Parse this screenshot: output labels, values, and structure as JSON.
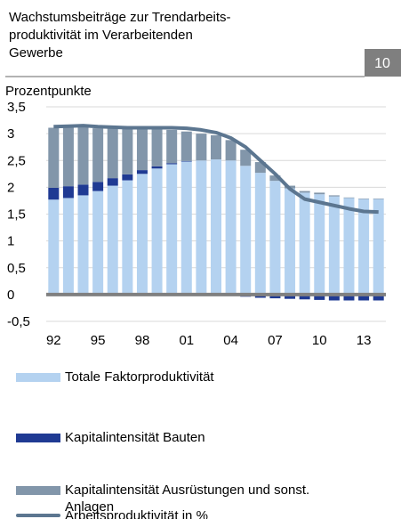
{
  "chart_data": {
    "type": "bar",
    "title_lines": [
      "Wachstumsbeiträge zur Trendarbeits-",
      "produktivität im Verarbeitenden",
      "Gewerbe"
    ],
    "badge": "10",
    "y_label": "Prozentpunkte",
    "categories": [
      "92",
      null,
      null,
      "95",
      null,
      null,
      "98",
      null,
      null,
      "01",
      null,
      null,
      "04",
      null,
      null,
      "07",
      null,
      null,
      "10",
      null,
      null,
      "13",
      null
    ],
    "series": [
      {
        "name": "Totale Faktorproduktivität",
        "color": "#b4d2f0",
        "values": [
          1.77,
          1.8,
          1.85,
          1.93,
          2.03,
          2.13,
          2.25,
          2.35,
          2.43,
          2.48,
          2.5,
          2.52,
          2.5,
          2.4,
          2.27,
          2.12,
          1.98,
          1.9,
          1.87,
          1.83,
          1.8,
          1.78,
          1.78
        ]
      },
      {
        "name": "Kapitalintensität Bauten",
        "color": "#1f3a93",
        "values": [
          0.22,
          0.22,
          0.2,
          0.17,
          0.14,
          0.11,
          0.07,
          0.04,
          0.02,
          0.01,
          0,
          0,
          -0.02,
          -0.04,
          -0.06,
          -0.07,
          -0.08,
          -0.09,
          -0.1,
          -0.11,
          -0.11,
          -0.11,
          -0.11
        ]
      },
      {
        "name": "Kapitalintensität Ausrüstungen und sonst. Anlagen",
        "color": "#8296aa",
        "values": [
          1.12,
          1.1,
          1.08,
          1.0,
          0.93,
          0.86,
          0.78,
          0.7,
          0.62,
          0.55,
          0.5,
          0.45,
          0.38,
          0.3,
          0.2,
          0.1,
          0.05,
          0.03,
          0.03,
          0.02,
          0.01,
          0.01,
          0.01
        ]
      },
      {
        "name": "Arbeitsproduktivität in %",
        "color": "#5c7690",
        "type": "line",
        "values": [
          3.13,
          3.14,
          3.15,
          3.13,
          3.12,
          3.11,
          3.11,
          3.11,
          3.11,
          3.1,
          3.07,
          3.02,
          2.92,
          2.75,
          2.5,
          2.25,
          1.97,
          1.78,
          1.72,
          1.66,
          1.6,
          1.55,
          1.54
        ]
      }
    ],
    "ylim": [
      -0.5,
      3.5
    ],
    "yticks": [
      {
        "value": -0.5,
        "label": "-0,5"
      },
      0,
      {
        "value": 0.5,
        "label": "0,5"
      },
      1,
      {
        "value": 1.5,
        "label": "1,5"
      },
      2,
      {
        "value": 2.5,
        "label": "2,5"
      },
      3,
      {
        "value": 3.5,
        "label": "3,5"
      }
    ],
    "grid": true
  }
}
